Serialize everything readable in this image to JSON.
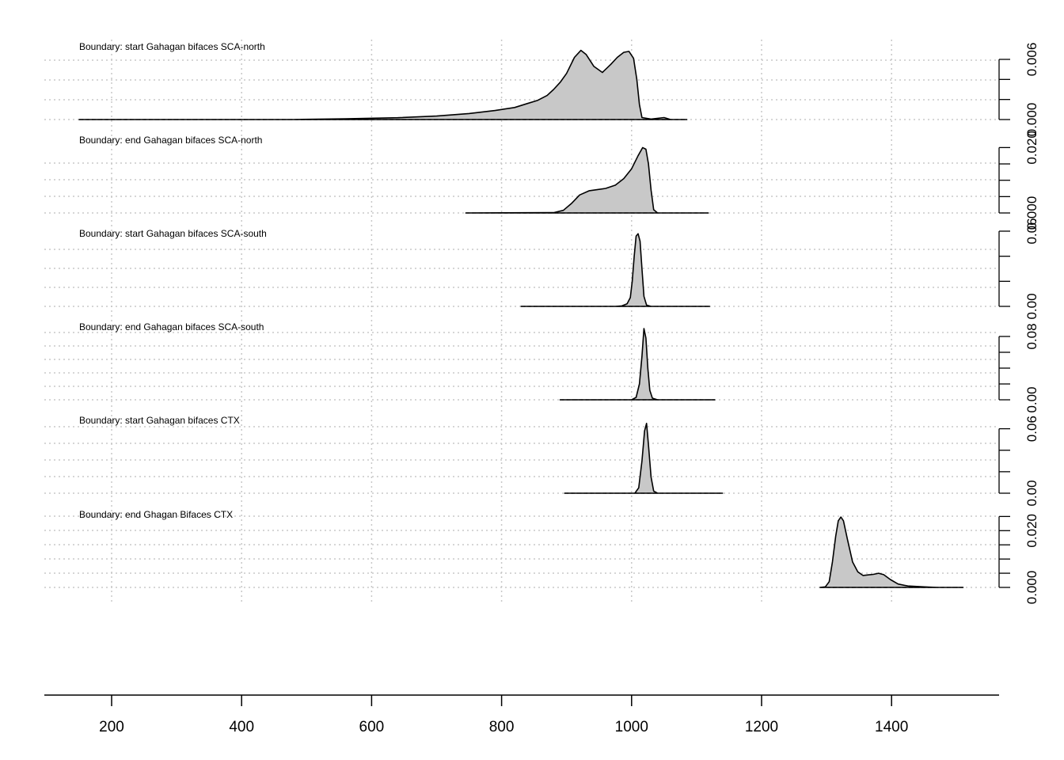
{
  "chart_data": {
    "type": "area",
    "subtype": "stacked density plots (OxCal multiplot)",
    "x_axis": {
      "ticks": [
        200,
        400,
        600,
        800,
        1000,
        1200,
        1400
      ],
      "tick_labels": [
        "200",
        "400",
        "600",
        "800",
        "1000",
        "1200",
        "1400"
      ],
      "range": [
        95,
        1565
      ]
    },
    "grid": true,
    "colors": {
      "fill": "#c8c8c8",
      "stroke": "#000000",
      "grid": "#c8c8c8"
    },
    "panels": [
      {
        "title": "Boundary: start Gahagan bifaces SCA-north",
        "range": [
          150,
          1085
        ],
        "ymax": 0.0075,
        "yticks": [
          0,
          0.002,
          0.004,
          0.006
        ],
        "ytick_labels": [
          "0.000",
          "",
          "",
          "0.006"
        ],
        "points": [
          [
            150,
            0
          ],
          [
            480,
            0.0
          ],
          [
            560,
            8e-05
          ],
          [
            640,
            0.00018
          ],
          [
            700,
            0.00035
          ],
          [
            750,
            0.0006
          ],
          [
            790,
            0.0009
          ],
          [
            820,
            0.0012
          ],
          [
            840,
            0.0016
          ],
          [
            855,
            0.0019
          ],
          [
            870,
            0.0024
          ],
          [
            880,
            0.003
          ],
          [
            890,
            0.0037
          ],
          [
            900,
            0.0046
          ],
          [
            912,
            0.0062
          ],
          [
            922,
            0.0069
          ],
          [
            930,
            0.0065
          ],
          [
            942,
            0.0053
          ],
          [
            955,
            0.0047
          ],
          [
            968,
            0.0055
          ],
          [
            978,
            0.0062
          ],
          [
            988,
            0.0067
          ],
          [
            996,
            0.0068
          ],
          [
            1003,
            0.0061
          ],
          [
            1008,
            0.004
          ],
          [
            1012,
            0.0015
          ],
          [
            1016,
            0.0002
          ],
          [
            1030,
            5e-05
          ],
          [
            1050,
            0.0002
          ],
          [
            1060,
            0
          ],
          [
            1085,
            0
          ]
        ]
      },
      {
        "title": "Boundary: end Gahagan bifaces SCA-north",
        "range": [
          745,
          1118
        ],
        "ymax": 0.023,
        "yticks": [
          0,
          0.005,
          0.01,
          0.015,
          0.02
        ],
        "ytick_labels": [
          "0.000",
          "",
          "",
          "",
          "0.020"
        ],
        "points": [
          [
            745,
            0
          ],
          [
            880,
            0.0001
          ],
          [
            895,
            0.0008
          ],
          [
            908,
            0.003
          ],
          [
            920,
            0.0055
          ],
          [
            935,
            0.0068
          ],
          [
            960,
            0.0075
          ],
          [
            975,
            0.0085
          ],
          [
            988,
            0.0105
          ],
          [
            1000,
            0.0135
          ],
          [
            1010,
            0.0175
          ],
          [
            1017,
            0.02
          ],
          [
            1022,
            0.0195
          ],
          [
            1026,
            0.015
          ],
          [
            1030,
            0.007
          ],
          [
            1034,
            0.001
          ],
          [
            1040,
            0
          ],
          [
            1118,
            0
          ]
        ]
      },
      {
        "title": "Boundary: start Gahagan bifaces SCA-south",
        "range": [
          830,
          1120
        ],
        "ymax": 0.06,
        "yticks": [
          0,
          0.02,
          0.04,
          0.06
        ],
        "ytick_labels": [
          "0.00",
          "",
          "",
          "0.06"
        ],
        "points": [
          [
            830,
            0
          ],
          [
            975,
            0
          ],
          [
            985,
            0.0004
          ],
          [
            993,
            0.002
          ],
          [
            998,
            0.007
          ],
          [
            1001,
            0.02
          ],
          [
            1004,
            0.04
          ],
          [
            1007,
            0.056
          ],
          [
            1010,
            0.058
          ],
          [
            1013,
            0.052
          ],
          [
            1016,
            0.03
          ],
          [
            1019,
            0.008
          ],
          [
            1023,
            0.001
          ],
          [
            1030,
            0
          ],
          [
            1120,
            0
          ]
        ]
      },
      {
        "title": "Boundary: end Gahagan bifaces SCA-south",
        "range": [
          890,
          1128
        ],
        "ymax": 0.095,
        "yticks": [
          0,
          0.02,
          0.04,
          0.06,
          0.08
        ],
        "ytick_labels": [
          "0.00",
          "",
          "",
          "",
          "0.08"
        ],
        "points": [
          [
            890,
            0
          ],
          [
            1000,
            0
          ],
          [
            1007,
            0.003
          ],
          [
            1012,
            0.02
          ],
          [
            1016,
            0.055
          ],
          [
            1019,
            0.09
          ],
          [
            1022,
            0.078
          ],
          [
            1025,
            0.04
          ],
          [
            1028,
            0.012
          ],
          [
            1032,
            0.002
          ],
          [
            1040,
            0
          ],
          [
            1128,
            0
          ]
        ]
      },
      {
        "title": "Boundary: start Gahagan bifaces CTX",
        "range": [
          897,
          1140
        ],
        "ymax": 0.07,
        "yticks": [
          0,
          0.02,
          0.04,
          0.06
        ],
        "ytick_labels": [
          "0.00",
          "",
          "",
          "0.06"
        ],
        "points": [
          [
            897,
            0
          ],
          [
            1005,
            0
          ],
          [
            1011,
            0.005
          ],
          [
            1016,
            0.03
          ],
          [
            1020,
            0.058
          ],
          [
            1023,
            0.065
          ],
          [
            1026,
            0.045
          ],
          [
            1030,
            0.015
          ],
          [
            1034,
            0.002
          ],
          [
            1040,
            0
          ],
          [
            1140,
            0
          ]
        ]
      },
      {
        "title": "Boundary: end Ghagan Bifaces CTX",
        "range": [
          1290,
          1510
        ],
        "ymax": 0.0265,
        "yticks": [
          0,
          0.005,
          0.01,
          0.015,
          0.02,
          0.025
        ],
        "ytick_labels": [
          "0.000",
          "",
          "",
          "",
          "0.020",
          ""
        ],
        "points": [
          [
            1290,
            0
          ],
          [
            1298,
            0.0002
          ],
          [
            1304,
            0.002
          ],
          [
            1309,
            0.009
          ],
          [
            1314,
            0.018
          ],
          [
            1318,
            0.0235
          ],
          [
            1322,
            0.0248
          ],
          [
            1326,
            0.0235
          ],
          [
            1332,
            0.017
          ],
          [
            1340,
            0.009
          ],
          [
            1348,
            0.0055
          ],
          [
            1356,
            0.0042
          ],
          [
            1364,
            0.0044
          ],
          [
            1372,
            0.0046
          ],
          [
            1380,
            0.005
          ],
          [
            1388,
            0.0045
          ],
          [
            1398,
            0.0028
          ],
          [
            1410,
            0.0012
          ],
          [
            1425,
            0.0005
          ],
          [
            1450,
            0.0002
          ],
          [
            1470,
            0
          ],
          [
            1510,
            0
          ]
        ]
      }
    ]
  }
}
